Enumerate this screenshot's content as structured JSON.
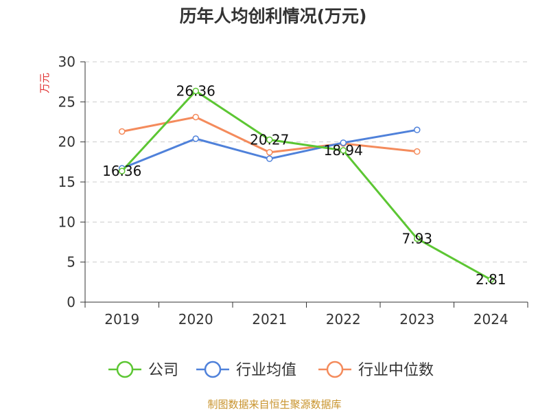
{
  "chart_data": {
    "type": "line",
    "title": "历年人均创利情况(万元)",
    "ylabel": "万元",
    "xlabel": "",
    "categories": [
      "2019",
      "2020",
      "2021",
      "2022",
      "2023",
      "2024"
    ],
    "ylim": [
      0,
      30
    ],
    "yticks": [
      0,
      5,
      10,
      15,
      20,
      25,
      30
    ],
    "grid": true,
    "legend_position": "bottom",
    "series": [
      {
        "name": "公司",
        "color": "#5cc633",
        "values": [
          16.36,
          26.36,
          20.27,
          18.94,
          7.93,
          2.81
        ],
        "labels": [
          "16.36",
          "26.36",
          "20.27",
          "18.94",
          "7.93",
          "2.81"
        ]
      },
      {
        "name": "行业均值",
        "color": "#4f81da",
        "values": [
          16.7,
          20.4,
          17.9,
          19.9,
          21.5,
          null
        ],
        "labels": []
      },
      {
        "name": "行业中位数",
        "color": "#f48b5c",
        "values": [
          21.3,
          23.1,
          18.7,
          19.8,
          18.8,
          null
        ],
        "labels": []
      }
    ],
    "source": "制图数据来自恒生聚源数据库",
    "colors": {
      "title": "#333333",
      "ylabel": "#e03030",
      "axis": "#333333",
      "grid": "#cccccc",
      "source": "#c8932c"
    }
  }
}
